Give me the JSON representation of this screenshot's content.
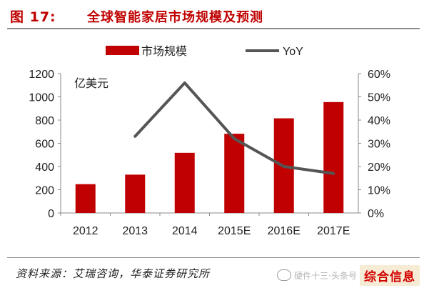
{
  "figure": {
    "number": "图 17:",
    "title": "全球智能家居市场规模及预测",
    "source": "资料来源：艾瑞咨询，华泰证券研究所"
  },
  "watermark": {
    "text": "硬件十三·头条号",
    "brand": "综合信息"
  },
  "chart_data": {
    "type": "bar",
    "categories": [
      "2012",
      "2013",
      "2014",
      "2015E",
      "2016E",
      "2017E"
    ],
    "series": [
      {
        "name": "市场规模",
        "type": "bar",
        "axis": "left",
        "color": "#c00000",
        "values": [
          248,
          330,
          518,
          682,
          815,
          955
        ]
      },
      {
        "name": "YoY",
        "type": "line",
        "axis": "right",
        "color": "#555555",
        "values": [
          null,
          0.33,
          0.56,
          0.32,
          0.2,
          0.17
        ]
      }
    ],
    "y_unit_label": "亿美元",
    "ylim": [
      0,
      1200
    ],
    "yticks": [
      "0",
      "200",
      "400",
      "600",
      "800",
      "1000",
      "1200"
    ],
    "y2lim": [
      0,
      0.6
    ],
    "y2ticks": [
      "0%",
      "10%",
      "20%",
      "30%",
      "40%",
      "50%",
      "60%"
    ],
    "legend_position": "top",
    "grid": false
  }
}
